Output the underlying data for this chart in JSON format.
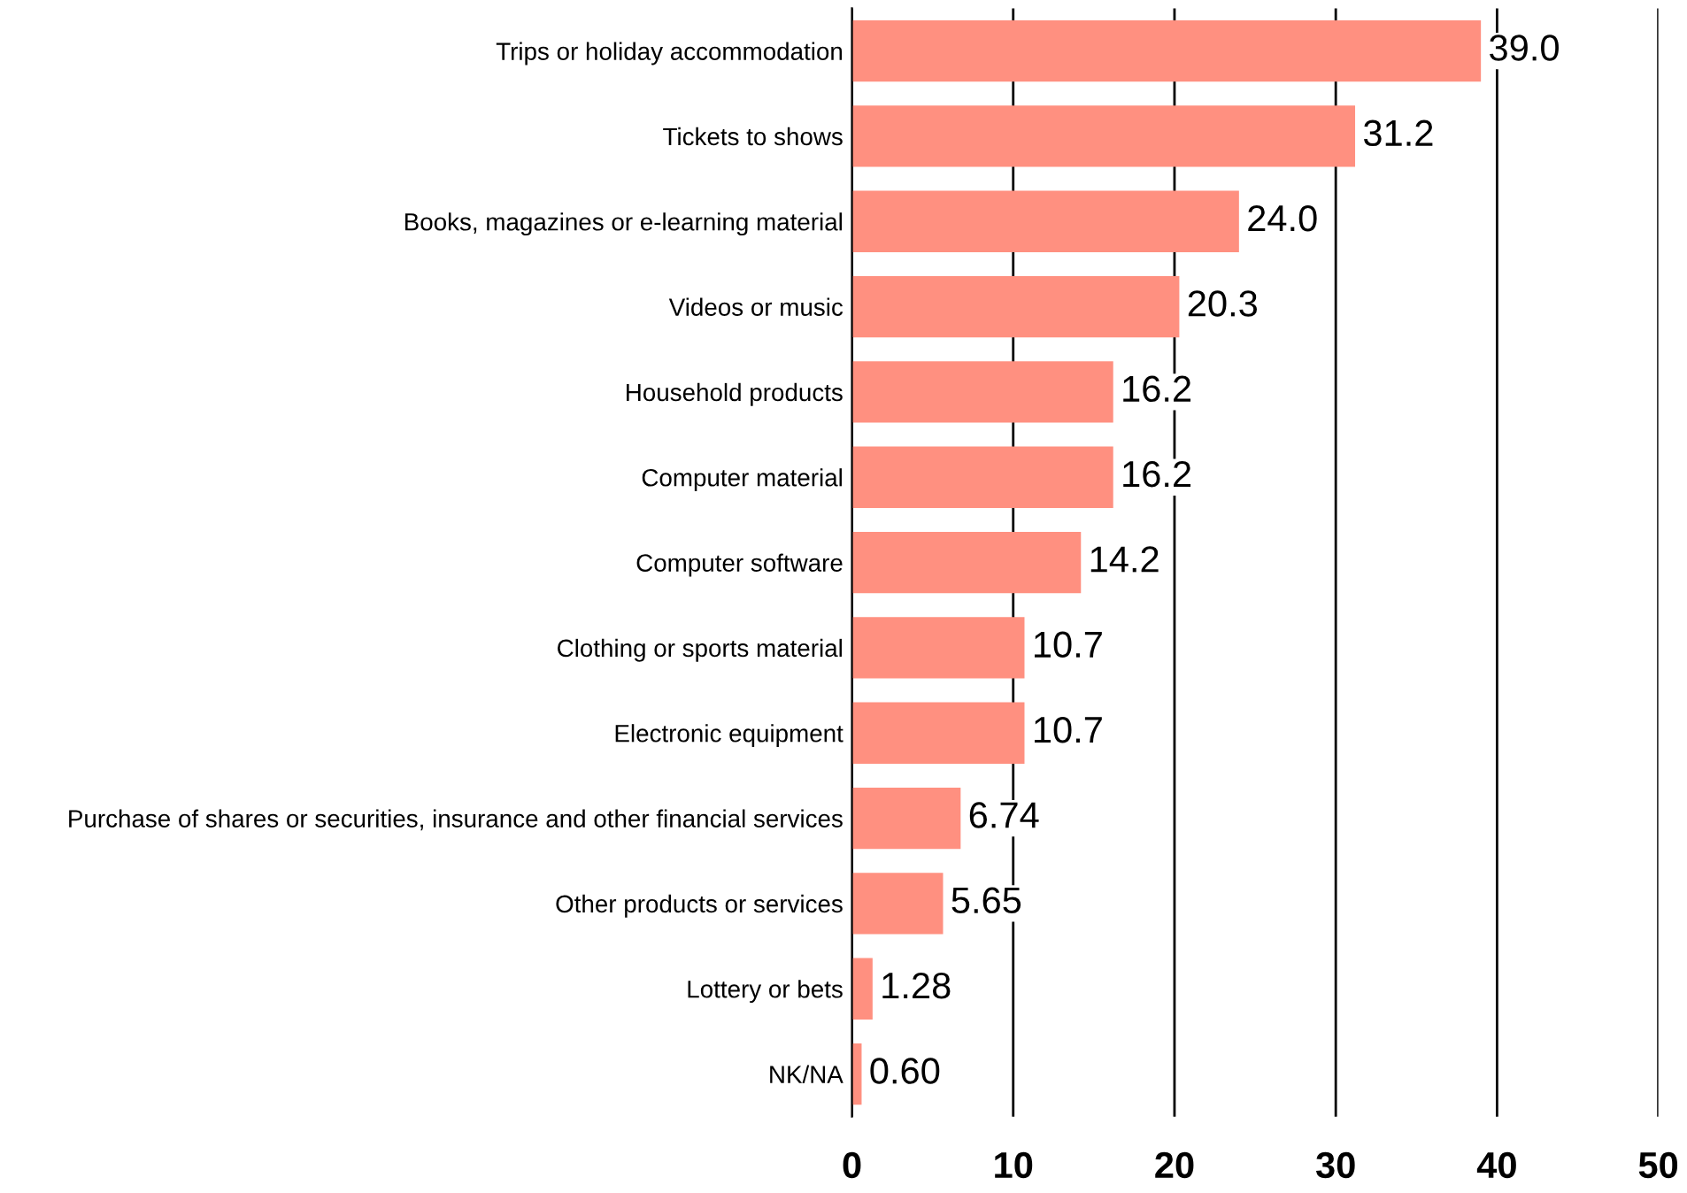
{
  "chart_data": {
    "type": "bar",
    "orientation": "horizontal",
    "categories": [
      "Trips or holiday accommodation",
      "Tickets to shows",
      "Books, magazines or e-learning material",
      "Videos or music",
      "Household products",
      "Computer material",
      "Computer software",
      "Clothing or sports material",
      "Electronic equipment",
      "Purchase of shares or securities, insurance and other financial services",
      "Other products or services",
      "Lottery or bets",
      "NK/NA"
    ],
    "values": [
      39.0,
      31.2,
      24.0,
      20.3,
      16.2,
      16.2,
      14.2,
      10.7,
      10.7,
      6.74,
      5.65,
      1.28,
      0.6
    ],
    "value_labels": [
      "39.0",
      "31.2",
      "24.0",
      "20.3",
      "16.2",
      "16.2",
      "14.2",
      "10.7",
      "10.7",
      "6.74",
      "5.65",
      "1.28",
      "0.60"
    ],
    "color": "#ff9080",
    "xlim": [
      0,
      50
    ],
    "xticks": [
      0,
      10,
      20,
      30,
      40,
      50
    ],
    "grid": "x"
  }
}
